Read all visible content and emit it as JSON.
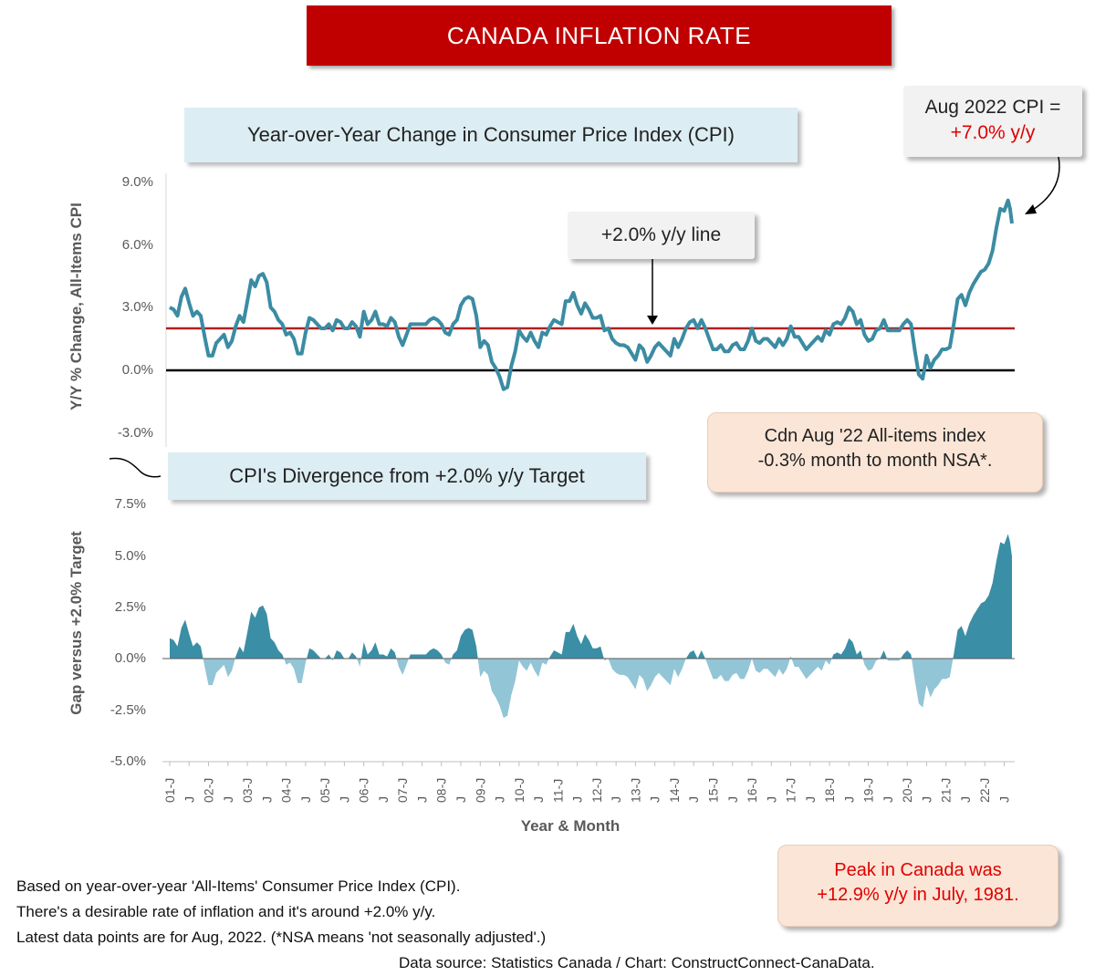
{
  "banner": "CANADA INFLATION RATE",
  "top_chart_title": "Year-over-Year Change in Consumer Price Index (CPI)",
  "bottom_chart_title": "CPI's Divergence from +2.0% y/y Target",
  "callout_latest": {
    "line1": "Aug 2022 CPI =",
    "line2": "+7.0% y/y"
  },
  "callout_line": "+2.0% y/y line",
  "callout_monthly": {
    "line1": "Cdn Aug '22 All-items index",
    "line2": "-0.3% month to month NSA*."
  },
  "callout_peak": {
    "line1": "Peak in Canada was",
    "line2": "+12.9% y/y in July, 1981."
  },
  "footnotes": [
    "Based on year-over-year 'All-Items' Consumer Price Index (CPI).",
    "There's a desirable rate of inflation and it's around +2.0% y/y.",
    "Latest data points are for Aug, 2022. (*NSA means 'not seasonally adjusted'.)"
  ],
  "source": "Data source: Statistics Canada / Chart: ConstructConnect-CanaData.",
  "colors": {
    "line": "#3b8ca3",
    "area_pos": "#3a8ea6",
    "area_neg": "#92c5d6",
    "target": "#c00000",
    "zero": "#000000",
    "banner": "#c00000"
  },
  "chart_data": [
    {
      "type": "line",
      "title": "Year-over-Year Change in Consumer Price Index (CPI)",
      "ylabel": "Y/Y % Change, All-Items CPI",
      "xlabel": "Year & Month",
      "ylim": [
        -3.0,
        9.0
      ],
      "yticks": [
        "9.0%",
        "6.0%",
        "3.0%",
        "0.0%",
        "-3.0%"
      ],
      "reference_lines": [
        {
          "name": "+2.0% y/y line",
          "y": 2.0
        },
        {
          "y": 0.0
        }
      ],
      "x_start": "2001-01",
      "x_end": "2022-08",
      "anchors_year_cpi": [
        [
          2001.0,
          3.0
        ],
        [
          2001.1,
          2.9
        ],
        [
          2001.2,
          2.6
        ],
        [
          2001.3,
          3.5
        ],
        [
          2001.4,
          3.9
        ],
        [
          2001.5,
          3.2
        ],
        [
          2001.6,
          2.6
        ],
        [
          2001.7,
          2.8
        ],
        [
          2001.8,
          2.6
        ],
        [
          2001.9,
          1.6
        ],
        [
          2002.0,
          0.7
        ],
        [
          2002.1,
          0.7
        ],
        [
          2002.2,
          1.3
        ],
        [
          2002.3,
          1.5
        ],
        [
          2002.4,
          1.7
        ],
        [
          2002.5,
          1.1
        ],
        [
          2002.6,
          1.4
        ],
        [
          2002.7,
          2.1
        ],
        [
          2002.8,
          2.6
        ],
        [
          2002.9,
          2.3
        ],
        [
          2003.0,
          3.3
        ],
        [
          2003.1,
          4.3
        ],
        [
          2003.2,
          4.0
        ],
        [
          2003.3,
          4.5
        ],
        [
          2003.4,
          4.6
        ],
        [
          2003.5,
          4.2
        ],
        [
          2003.6,
          3.0
        ],
        [
          2003.7,
          2.8
        ],
        [
          2003.8,
          2.4
        ],
        [
          2003.9,
          2.2
        ],
        [
          2004.0,
          1.7
        ],
        [
          2004.1,
          1.8
        ],
        [
          2004.2,
          1.5
        ],
        [
          2004.3,
          0.8
        ],
        [
          2004.4,
          0.8
        ],
        [
          2004.5,
          1.8
        ],
        [
          2004.6,
          2.5
        ],
        [
          2004.7,
          2.4
        ],
        [
          2004.8,
          2.2
        ],
        [
          2004.9,
          2.0
        ],
        [
          2005.0,
          2.0
        ],
        [
          2005.1,
          2.2
        ],
        [
          2005.2,
          1.9
        ],
        [
          2005.3,
          2.4
        ],
        [
          2005.4,
          2.3
        ],
        [
          2005.5,
          2.0
        ],
        [
          2005.6,
          2.0
        ],
        [
          2005.7,
          2.3
        ],
        [
          2005.8,
          2.1
        ],
        [
          2005.9,
          1.6
        ],
        [
          2006.0,
          2.8
        ],
        [
          2006.1,
          2.2
        ],
        [
          2006.2,
          2.4
        ],
        [
          2006.3,
          2.8
        ],
        [
          2006.4,
          2.2
        ],
        [
          2006.5,
          2.2
        ],
        [
          2006.6,
          2.1
        ],
        [
          2006.7,
          2.5
        ],
        [
          2006.8,
          2.3
        ],
        [
          2006.9,
          1.6
        ],
        [
          2007.0,
          1.2
        ],
        [
          2007.1,
          1.7
        ],
        [
          2007.2,
          2.2
        ],
        [
          2007.3,
          2.2
        ],
        [
          2007.4,
          2.2
        ],
        [
          2007.5,
          2.2
        ],
        [
          2007.6,
          2.2
        ],
        [
          2007.7,
          2.4
        ],
        [
          2007.8,
          2.5
        ],
        [
          2007.9,
          2.4
        ],
        [
          2008.0,
          2.2
        ],
        [
          2008.1,
          1.8
        ],
        [
          2008.2,
          1.7
        ],
        [
          2008.3,
          2.2
        ],
        [
          2008.4,
          2.4
        ],
        [
          2008.5,
          3.1
        ],
        [
          2008.6,
          3.4
        ],
        [
          2008.7,
          3.5
        ],
        [
          2008.8,
          3.4
        ],
        [
          2008.9,
          2.6
        ],
        [
          2009.0,
          1.1
        ],
        [
          2009.1,
          1.4
        ],
        [
          2009.2,
          1.2
        ],
        [
          2009.3,
          0.4
        ],
        [
          2009.4,
          0.1
        ],
        [
          2009.5,
          -0.3
        ],
        [
          2009.6,
          -0.9
        ],
        [
          2009.7,
          -0.8
        ],
        [
          2009.8,
          0.2
        ],
        [
          2009.9,
          0.9
        ],
        [
          2010.0,
          1.9
        ],
        [
          2010.1,
          1.6
        ],
        [
          2010.2,
          1.4
        ],
        [
          2010.3,
          1.8
        ],
        [
          2010.4,
          1.4
        ],
        [
          2010.5,
          1.1
        ],
        [
          2010.6,
          1.8
        ],
        [
          2010.7,
          1.7
        ],
        [
          2010.8,
          2.1
        ],
        [
          2010.9,
          2.4
        ],
        [
          2011.0,
          2.3
        ],
        [
          2011.1,
          2.2
        ],
        [
          2011.2,
          3.3
        ],
        [
          2011.3,
          3.3
        ],
        [
          2011.4,
          3.7
        ],
        [
          2011.5,
          3.1
        ],
        [
          2011.6,
          2.7
        ],
        [
          2011.7,
          3.2
        ],
        [
          2011.8,
          2.9
        ],
        [
          2011.9,
          2.5
        ],
        [
          2012.0,
          2.5
        ],
        [
          2012.1,
          2.6
        ],
        [
          2012.2,
          1.9
        ],
        [
          2012.3,
          2.0
        ],
        [
          2012.4,
          1.5
        ],
        [
          2012.5,
          1.3
        ],
        [
          2012.6,
          1.2
        ],
        [
          2012.7,
          1.2
        ],
        [
          2012.8,
          1.1
        ],
        [
          2012.9,
          0.8
        ],
        [
          2013.0,
          0.5
        ],
        [
          2013.1,
          1.2
        ],
        [
          2013.2,
          1.0
        ],
        [
          2013.3,
          0.4
        ],
        [
          2013.4,
          0.7
        ],
        [
          2013.5,
          1.1
        ],
        [
          2013.6,
          1.3
        ],
        [
          2013.7,
          1.1
        ],
        [
          2013.8,
          0.9
        ],
        [
          2013.9,
          0.7
        ],
        [
          2014.0,
          1.5
        ],
        [
          2014.1,
          1.1
        ],
        [
          2014.2,
          1.5
        ],
        [
          2014.3,
          2.0
        ],
        [
          2014.4,
          2.3
        ],
        [
          2014.5,
          2.4
        ],
        [
          2014.6,
          2.0
        ],
        [
          2014.7,
          2.4
        ],
        [
          2014.8,
          2.0
        ],
        [
          2014.9,
          1.5
        ],
        [
          2015.0,
          1.0
        ],
        [
          2015.1,
          1.0
        ],
        [
          2015.2,
          1.2
        ],
        [
          2015.3,
          0.9
        ],
        [
          2015.4,
          0.9
        ],
        [
          2015.5,
          1.2
        ],
        [
          2015.6,
          1.3
        ],
        [
          2015.7,
          1.0
        ],
        [
          2015.8,
          1.0
        ],
        [
          2015.9,
          1.4
        ],
        [
          2016.0,
          2.0
        ],
        [
          2016.1,
          1.4
        ],
        [
          2016.2,
          1.3
        ],
        [
          2016.3,
          1.5
        ],
        [
          2016.4,
          1.5
        ],
        [
          2016.5,
          1.3
        ],
        [
          2016.6,
          1.1
        ],
        [
          2016.7,
          1.5
        ],
        [
          2016.8,
          1.2
        ],
        [
          2016.9,
          1.5
        ],
        [
          2017.0,
          2.1
        ],
        [
          2017.1,
          1.6
        ],
        [
          2017.2,
          1.6
        ],
        [
          2017.3,
          1.3
        ],
        [
          2017.4,
          1.0
        ],
        [
          2017.5,
          1.2
        ],
        [
          2017.6,
          1.4
        ],
        [
          2017.7,
          1.6
        ],
        [
          2017.8,
          1.4
        ],
        [
          2017.9,
          1.9
        ],
        [
          2018.0,
          1.7
        ],
        [
          2018.1,
          2.2
        ],
        [
          2018.2,
          2.3
        ],
        [
          2018.3,
          2.2
        ],
        [
          2018.4,
          2.5
        ],
        [
          2018.5,
          3.0
        ],
        [
          2018.6,
          2.8
        ],
        [
          2018.7,
          2.2
        ],
        [
          2018.8,
          2.4
        ],
        [
          2018.9,
          1.7
        ],
        [
          2019.0,
          1.4
        ],
        [
          2019.1,
          1.5
        ],
        [
          2019.2,
          1.9
        ],
        [
          2019.3,
          2.0
        ],
        [
          2019.4,
          2.4
        ],
        [
          2019.5,
          1.9
        ],
        [
          2019.6,
          1.9
        ],
        [
          2019.7,
          1.9
        ],
        [
          2019.8,
          1.9
        ],
        [
          2019.9,
          2.2
        ],
        [
          2020.0,
          2.4
        ],
        [
          2020.1,
          2.2
        ],
        [
          2020.2,
          0.9
        ],
        [
          2020.3,
          -0.2
        ],
        [
          2020.4,
          -0.4
        ],
        [
          2020.5,
          0.7
        ],
        [
          2020.6,
          0.1
        ],
        [
          2020.7,
          0.5
        ],
        [
          2020.8,
          0.7
        ],
        [
          2020.9,
          1.0
        ],
        [
          2021.0,
          1.0
        ],
        [
          2021.1,
          1.1
        ],
        [
          2021.2,
          2.2
        ],
        [
          2021.3,
          3.4
        ],
        [
          2021.4,
          3.6
        ],
        [
          2021.5,
          3.1
        ],
        [
          2021.6,
          3.7
        ],
        [
          2021.7,
          4.1
        ],
        [
          2021.8,
          4.4
        ],
        [
          2021.9,
          4.7
        ],
        [
          2022.0,
          4.8
        ],
        [
          2022.1,
          5.1
        ],
        [
          2022.2,
          5.7
        ],
        [
          2022.3,
          6.8
        ],
        [
          2022.4,
          7.7
        ],
        [
          2022.5,
          7.6
        ],
        [
          2022.6,
          8.1
        ],
        [
          2022.65,
          7.7
        ],
        [
          2022.7,
          7.0
        ]
      ]
    },
    {
      "type": "area",
      "title": "CPI's Divergence from +2.0% y/y Target",
      "ylabel": "Gap versus +2.0% Target",
      "xlabel": "Year & Month",
      "ylim": [
        -5.0,
        7.5
      ],
      "yticks": [
        "7.5%",
        "5.0%",
        "2.5%",
        "0.0%",
        "-2.5%",
        "-5.0%"
      ],
      "definition": "CPI y/y minus 2.0"
    }
  ],
  "x_ticks": [
    "01-J",
    "J",
    "02-J",
    "J",
    "03-J",
    "J",
    "04-J",
    "J",
    "05-J",
    "J",
    "06-J",
    "J",
    "07-J",
    "J",
    "08-J",
    "J",
    "09-J",
    "J",
    "10-J",
    "J",
    "11-J",
    "J",
    "12-J",
    "J",
    "13-J",
    "J",
    "14-J",
    "J",
    "15-J",
    "J",
    "16-J",
    "J",
    "17-J",
    "J",
    "18-J",
    "J",
    "19-J",
    "J",
    "20-J",
    "J",
    "21-J",
    "J",
    "22-J",
    "J"
  ]
}
